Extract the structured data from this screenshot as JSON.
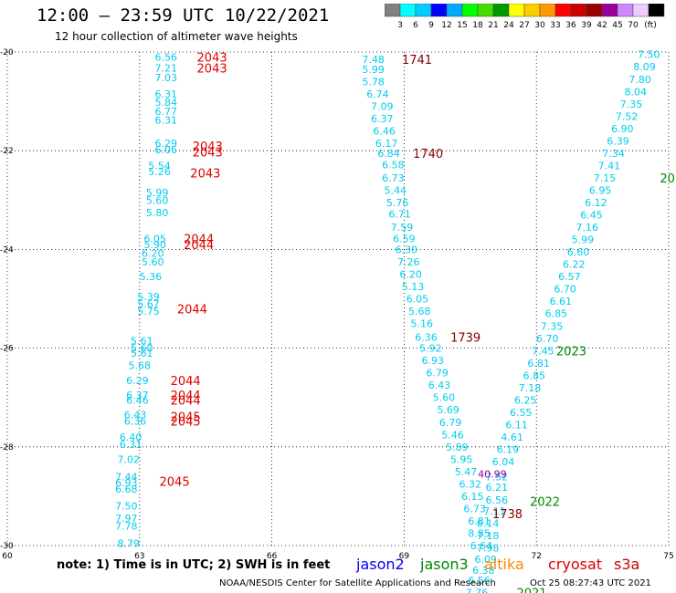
{
  "title": "12:00 – 23:59 UTC 10/22/2021",
  "subtitle": "12 hour collection of altimeter wave heights",
  "note": "note:  1) Time is in UTC;  2) SWH is in feet",
  "footer_left": "NOAA/NESDIS Center for Satellite Applications and Research",
  "footer_right": "Oct 25 08:27:43 UTC 2021",
  "satellites": [
    {
      "name": "jason2",
      "color": "#0000ee"
    },
    {
      "name": "jason3",
      "color": "#008800"
    },
    {
      "name": "altika",
      "color": "#ff8800"
    },
    {
      "name": "cryosat",
      "color": "#dd0000"
    },
    {
      "name": "s3a",
      "color": "#cc0000"
    }
  ],
  "color_scale": {
    "unit": "(ft)",
    "labels": [
      "3",
      "6",
      "9",
      "12",
      "15",
      "18",
      "21",
      "24",
      "27",
      "30",
      "33",
      "36",
      "39",
      "42",
      "45",
      "70"
    ],
    "colors": [
      "#808080",
      "#00ffff",
      "#00ccff",
      "#0000ff",
      "#00aaff",
      "#00ff00",
      "#44dd00",
      "#009900",
      "#ffff00",
      "#ffcc00",
      "#ff9900",
      "#ff0000",
      "#cc0000",
      "#990000",
      "#990099",
      "#cc88ff",
      "#eeccff",
      "#000000"
    ]
  },
  "chart_data": {
    "type": "scatter",
    "xlim": [
      60,
      75
    ],
    "ylim": [
      -30,
      -20
    ],
    "x_ticks": [
      "60",
      "63",
      "66",
      "69",
      "72",
      "75"
    ],
    "y_ticks": [
      "-20",
      "-22",
      "-24",
      "-26",
      "-28",
      "-30"
    ],
    "grid": true,
    "swh_points": [
      {
        "x": 63.6,
        "y": -20.1,
        "v": "6.56"
      },
      {
        "x": 63.6,
        "y": -20.32,
        "v": "7.21"
      },
      {
        "x": 63.6,
        "y": -20.52,
        "v": "7.03"
      },
      {
        "x": 63.6,
        "y": -20.85,
        "v": "6.31"
      },
      {
        "x": 63.6,
        "y": -21.02,
        "v": "5.84"
      },
      {
        "x": 63.6,
        "y": -21.2,
        "v": "6.77"
      },
      {
        "x": 63.6,
        "y": -21.38,
        "v": "6.31"
      },
      {
        "x": 63.6,
        "y": -21.85,
        "v": "6.29"
      },
      {
        "x": 63.6,
        "y": -21.98,
        "v": "6.06"
      },
      {
        "x": 63.45,
        "y": -22.3,
        "v": "5.54"
      },
      {
        "x": 63.45,
        "y": -22.42,
        "v": "5.26"
      },
      {
        "x": 63.4,
        "y": -22.85,
        "v": "5.99"
      },
      {
        "x": 63.4,
        "y": -23.0,
        "v": "5.60"
      },
      {
        "x": 63.4,
        "y": -23.25,
        "v": "5.80"
      },
      {
        "x": 63.35,
        "y": -23.78,
        "v": "6.05"
      },
      {
        "x": 63.35,
        "y": -23.9,
        "v": "5.90"
      },
      {
        "x": 63.3,
        "y": -24.08,
        "v": "6.20"
      },
      {
        "x": 63.3,
        "y": -24.25,
        "v": "5.60"
      },
      {
        "x": 63.25,
        "y": -24.55,
        "v": "5.36"
      },
      {
        "x": 63.2,
        "y": -24.95,
        "v": "5.39"
      },
      {
        "x": 63.2,
        "y": -25.1,
        "v": "5.67"
      },
      {
        "x": 63.2,
        "y": -25.25,
        "v": "5.75"
      },
      {
        "x": 63.05,
        "y": -25.85,
        "v": "5.61"
      },
      {
        "x": 63.05,
        "y": -26.0,
        "v": "5.60"
      },
      {
        "x": 63.05,
        "y": -26.1,
        "v": "5.61"
      },
      {
        "x": 63.0,
        "y": -26.35,
        "v": "5.68"
      },
      {
        "x": 62.95,
        "y": -26.65,
        "v": "6.29"
      },
      {
        "x": 62.95,
        "y": -26.95,
        "v": "6.37"
      },
      {
        "x": 62.95,
        "y": -27.05,
        "v": "6.46"
      },
      {
        "x": 62.9,
        "y": -27.35,
        "v": "6.43"
      },
      {
        "x": 62.9,
        "y": -27.48,
        "v": "6.36"
      },
      {
        "x": 62.8,
        "y": -27.8,
        "v": "6.40"
      },
      {
        "x": 62.8,
        "y": -27.95,
        "v": "6.31"
      },
      {
        "x": 62.75,
        "y": -28.25,
        "v": "7.02"
      },
      {
        "x": 62.7,
        "y": -28.6,
        "v": "7.44"
      },
      {
        "x": 62.7,
        "y": -28.72,
        "v": "6.93"
      },
      {
        "x": 62.7,
        "y": -28.85,
        "v": "6.68"
      },
      {
        "x": 62.7,
        "y": -29.2,
        "v": "7.50"
      },
      {
        "x": 62.7,
        "y": -29.45,
        "v": "7.97"
      },
      {
        "x": 62.7,
        "y": -29.6,
        "v": "7.78"
      },
      {
        "x": 62.75,
        "y": -29.95,
        "v": "8.79"
      },
      {
        "x": 68.3,
        "y": -20.15,
        "v": "7.48"
      },
      {
        "x": 68.3,
        "y": -20.35,
        "v": "5.99"
      },
      {
        "x": 68.3,
        "y": -20.6,
        "v": "5.78"
      },
      {
        "x": 68.4,
        "y": -20.85,
        "v": "6.74"
      },
      {
        "x": 68.5,
        "y": -21.1,
        "v": "7.09"
      },
      {
        "x": 68.5,
        "y": -21.35,
        "v": "6.37"
      },
      {
        "x": 68.55,
        "y": -21.6,
        "v": "6.46"
      },
      {
        "x": 68.6,
        "y": -21.85,
        "v": "6.17"
      },
      {
        "x": 68.65,
        "y": -22.05,
        "v": "6.84"
      },
      {
        "x": 68.75,
        "y": -22.28,
        "v": "6.58"
      },
      {
        "x": 68.75,
        "y": -22.55,
        "v": "6.73"
      },
      {
        "x": 68.8,
        "y": -22.8,
        "v": "5.44"
      },
      {
        "x": 68.85,
        "y": -23.05,
        "v": "5.76"
      },
      {
        "x": 68.9,
        "y": -23.28,
        "v": "6.71"
      },
      {
        "x": 68.95,
        "y": -23.55,
        "v": "7.59"
      },
      {
        "x": 69.0,
        "y": -23.78,
        "v": "6.59"
      },
      {
        "x": 69.05,
        "y": -24.0,
        "v": "6.30"
      },
      {
        "x": 69.1,
        "y": -24.25,
        "v": "7.26"
      },
      {
        "x": 69.15,
        "y": -24.5,
        "v": "6.20"
      },
      {
        "x": 69.2,
        "y": -24.75,
        "v": "5.13"
      },
      {
        "x": 69.3,
        "y": -25.0,
        "v": "6.05"
      },
      {
        "x": 69.35,
        "y": -25.25,
        "v": "5.68"
      },
      {
        "x": 69.4,
        "y": -25.5,
        "v": "5.16"
      },
      {
        "x": 69.5,
        "y": -25.78,
        "v": "6.36"
      },
      {
        "x": 69.6,
        "y": -26.0,
        "v": "5.92"
      },
      {
        "x": 69.65,
        "y": -26.25,
        "v": "6.93"
      },
      {
        "x": 69.75,
        "y": -26.5,
        "v": "6.79"
      },
      {
        "x": 69.8,
        "y": -26.75,
        "v": "6.43"
      },
      {
        "x": 69.9,
        "y": -27.0,
        "v": "5.60"
      },
      {
        "x": 70.0,
        "y": -27.25,
        "v": "5.69"
      },
      {
        "x": 70.05,
        "y": -27.5,
        "v": "6.79"
      },
      {
        "x": 70.1,
        "y": -27.75,
        "v": "5.46"
      },
      {
        "x": 70.2,
        "y": -28.0,
        "v": "5.89"
      },
      {
        "x": 70.3,
        "y": -28.25,
        "v": "5.95"
      },
      {
        "x": 70.4,
        "y": -28.5,
        "v": "5.47"
      },
      {
        "x": 70.5,
        "y": -28.75,
        "v": "6.32"
      },
      {
        "x": 70.55,
        "y": -29.0,
        "v": "6.15"
      },
      {
        "x": 70.6,
        "y": -29.25,
        "v": "6.73"
      },
      {
        "x": 70.7,
        "y": -29.5,
        "v": "6.81"
      },
      {
        "x": 70.7,
        "y": -29.75,
        "v": "8.85"
      },
      {
        "x": 70.75,
        "y": -30.0,
        "v": "6.64"
      },
      {
        "x": 71.1,
        "y": -28.6,
        "v": "7.52"
      },
      {
        "x": 71.1,
        "y": -28.82,
        "v": "6.21"
      },
      {
        "x": 71.1,
        "y": -29.08,
        "v": "6.56"
      },
      {
        "x": 71.05,
        "y": -29.3,
        "v": "7.11"
      },
      {
        "x": 70.9,
        "y": -29.55,
        "v": "6.14"
      },
      {
        "x": 70.9,
        "y": -29.8,
        "v": "7.18"
      },
      {
        "x": 70.9,
        "y": -30.05,
        "v": "7.98"
      },
      {
        "x": 70.85,
        "y": -30.28,
        "v": "6.09"
      },
      {
        "x": 70.8,
        "y": -30.5,
        "v": "6.38"
      },
      {
        "x": 70.7,
        "y": -30.7,
        "v": "6.56"
      },
      {
        "x": 70.65,
        "y": -30.95,
        "v": "7.76"
      },
      {
        "x": 71.25,
        "y": -28.3,
        "v": "6.04"
      },
      {
        "x": 71.35,
        "y": -28.05,
        "v": "6.19"
      },
      {
        "x": 71.45,
        "y": -27.8,
        "v": "4.61"
      },
      {
        "x": 71.55,
        "y": -27.55,
        "v": "6.11"
      },
      {
        "x": 71.65,
        "y": -27.3,
        "v": "6.55"
      },
      {
        "x": 71.75,
        "y": -27.05,
        "v": "6.25"
      },
      {
        "x": 71.85,
        "y": -26.8,
        "v": "7.18"
      },
      {
        "x": 71.95,
        "y": -26.55,
        "v": "6.85"
      },
      {
        "x": 72.05,
        "y": -26.3,
        "v": "6.81"
      },
      {
        "x": 72.15,
        "y": -26.05,
        "v": "7.45"
      },
      {
        "x": 72.25,
        "y": -25.8,
        "v": "6.70"
      },
      {
        "x": 72.35,
        "y": -25.55,
        "v": "7.35"
      },
      {
        "x": 72.45,
        "y": -25.3,
        "v": "6.85"
      },
      {
        "x": 72.55,
        "y": -25.05,
        "v": "6.61"
      },
      {
        "x": 72.65,
        "y": -24.8,
        "v": "6.70"
      },
      {
        "x": 72.75,
        "y": -24.55,
        "v": "6.57"
      },
      {
        "x": 72.85,
        "y": -24.3,
        "v": "6.22"
      },
      {
        "x": 72.95,
        "y": -24.05,
        "v": "6.60"
      },
      {
        "x": 73.05,
        "y": -23.8,
        "v": "5.99"
      },
      {
        "x": 73.15,
        "y": -23.55,
        "v": "7.16"
      },
      {
        "x": 73.25,
        "y": -23.3,
        "v": "6.45"
      },
      {
        "x": 73.35,
        "y": -23.05,
        "v": "6.12"
      },
      {
        "x": 73.45,
        "y": -22.8,
        "v": "6.95"
      },
      {
        "x": 73.55,
        "y": -22.55,
        "v": "7.15"
      },
      {
        "x": 73.65,
        "y": -22.3,
        "v": "7.41"
      },
      {
        "x": 73.75,
        "y": -22.05,
        "v": "7.34"
      },
      {
        "x": 73.85,
        "y": -21.8,
        "v": "6.39"
      },
      {
        "x": 73.95,
        "y": -21.55,
        "v": "6.90"
      },
      {
        "x": 74.05,
        "y": -21.3,
        "v": "7.52"
      },
      {
        "x": 74.15,
        "y": -21.05,
        "v": "7.35"
      },
      {
        "x": 74.25,
        "y": -20.8,
        "v": "8.04"
      },
      {
        "x": 74.35,
        "y": -20.55,
        "v": "7.80"
      },
      {
        "x": 74.45,
        "y": -20.3,
        "v": "8.09"
      },
      {
        "x": 74.55,
        "y": -20.05,
        "v": "7.50"
      },
      {
        "x": 71.0,
        "y": -28.55,
        "v": "40.99",
        "purple": true
      }
    ],
    "pass_labels": [
      {
        "x": 64.3,
        "y": -20.1,
        "text": "2043",
        "color": "#dd0000"
      },
      {
        "x": 64.3,
        "y": -20.32,
        "text": "2043",
        "color": "#dd0000"
      },
      {
        "x": 64.2,
        "y": -21.9,
        "text": "2043",
        "color": "#dd0000"
      },
      {
        "x": 64.2,
        "y": -22.02,
        "text": "2043",
        "color": "#dd0000"
      },
      {
        "x": 64.15,
        "y": -22.45,
        "text": "2043",
        "color": "#dd0000"
      },
      {
        "x": 64.0,
        "y": -23.78,
        "text": "2044",
        "color": "#dd0000"
      },
      {
        "x": 64.0,
        "y": -23.9,
        "text": "2044",
        "color": "#dd0000"
      },
      {
        "x": 63.85,
        "y": -25.2,
        "text": "2044",
        "color": "#dd0000"
      },
      {
        "x": 63.7,
        "y": -26.65,
        "text": "2044",
        "color": "#dd0000"
      },
      {
        "x": 63.7,
        "y": -26.95,
        "text": "2044",
        "color": "#dd0000"
      },
      {
        "x": 63.7,
        "y": -27.05,
        "text": "2044",
        "color": "#dd0000"
      },
      {
        "x": 63.7,
        "y": -27.38,
        "text": "2045",
        "color": "#dd0000"
      },
      {
        "x": 63.7,
        "y": -27.48,
        "text": "2045",
        "color": "#dd0000"
      },
      {
        "x": 63.45,
        "y": -28.7,
        "text": "2045",
        "color": "#dd0000"
      },
      {
        "x": 68.95,
        "y": -20.15,
        "text": "1741",
        "color": "#880000"
      },
      {
        "x": 69.2,
        "y": -22.05,
        "text": "1740",
        "color": "#880000"
      },
      {
        "x": 70.05,
        "y": -25.78,
        "text": "1739",
        "color": "#880000"
      },
      {
        "x": 71.0,
        "y": -29.35,
        "text": "1738",
        "color": "#880000"
      },
      {
        "x": 71.85,
        "y": -29.1,
        "text": "2022",
        "color": "#008800"
      },
      {
        "x": 72.45,
        "y": -26.05,
        "text": "2023",
        "color": "#008800"
      },
      {
        "x": 71.55,
        "y": -30.95,
        "text": "2021",
        "color": "#008800"
      },
      {
        "x": 74.8,
        "y": -22.55,
        "text": "20",
        "color": "#008800"
      }
    ]
  }
}
